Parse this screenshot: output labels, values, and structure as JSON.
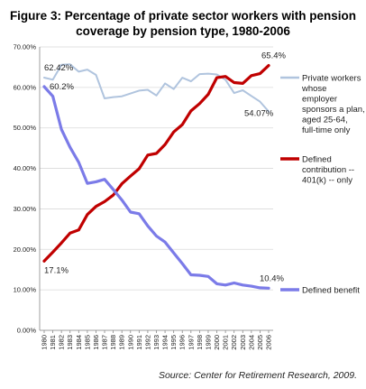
{
  "chart_data": {
    "type": "line",
    "title": "Figure 3:  Percentage of private sector workers with pension coverage by pension type, 1980-2006",
    "title_lines": [
      "Figure 3:  Percentage of private sector workers with pension",
      "coverage by pension type, 1980-2006"
    ],
    "source": "Source: Center for Retirement Research, 2009.",
    "ylim": [
      0,
      70
    ],
    "y_ticks": [
      "0.00%",
      "10.00%",
      "20.00%",
      "30.00%",
      "40.00%",
      "50.00%",
      "60.00%",
      "70.00%"
    ],
    "grid": true,
    "legend_position": "right, beside line ends",
    "categories": [
      "1980",
      "1981",
      "1982",
      "1983",
      "1984",
      "1985",
      "1986",
      "1987",
      "1988",
      "1989",
      "1990",
      "1991",
      "1992",
      "1993",
      "1994",
      "1995",
      "1996",
      "1997",
      "1998",
      "1999",
      "2000",
      "2001",
      "2002",
      "2003",
      "2004",
      "2005",
      "2006"
    ],
    "series": [
      {
        "name": "Private workers whose employer sponsors a plan, aged 25-64, full-time only",
        "legend_lines": [
          "Private workers",
          "whose",
          "employer",
          "sponsors a plan,",
          "aged 25-64,",
          "full-time only"
        ],
        "color": "#b0c4de",
        "values": [
          62.42,
          61.9,
          65.6,
          65.7,
          63.9,
          64.4,
          63.1,
          57.3,
          57.6,
          57.8,
          58.5,
          59.2,
          59.4,
          58.0,
          61.0,
          59.6,
          62.4,
          61.5,
          63.3,
          63.4,
          63.2,
          61.9,
          58.6,
          59.3,
          57.9,
          56.5,
          54.07
        ]
      },
      {
        "name": "Defined contribution -- 401(k) -- only",
        "legend_lines": [
          "Defined",
          "contribution --",
          "401(k) -- only"
        ],
        "color": "#c00000",
        "values": [
          17.1,
          19.3,
          21.6,
          24.0,
          24.8,
          28.6,
          30.6,
          31.8,
          33.4,
          36.2,
          38.1,
          39.9,
          43.3,
          43.7,
          45.9,
          49.0,
          50.8,
          54.2,
          56.0,
          58.3,
          62.4,
          62.7,
          61.2,
          61.0,
          62.9,
          63.4,
          65.4
        ]
      },
      {
        "name": "Defined benefit",
        "legend_lines": [
          "Defined benefit"
        ],
        "color": "#7b7be8",
        "values": [
          60.2,
          57.8,
          49.6,
          45.2,
          41.5,
          36.3,
          36.7,
          37.3,
          34.8,
          32.2,
          29.2,
          28.8,
          25.8,
          23.3,
          21.8,
          19.1,
          16.5,
          13.7,
          13.6,
          13.3,
          11.5,
          11.2,
          11.7,
          11.2,
          10.9,
          10.5,
          10.4
        ]
      }
    ],
    "annotations": [
      {
        "text": "62.42%",
        "series": 0,
        "index": 0
      },
      {
        "text": "54.07%",
        "series": 0,
        "index": 26
      },
      {
        "text": "65.4%",
        "series": 1,
        "index": 26
      },
      {
        "text": "17.1%",
        "series": 1,
        "index": 0
      },
      {
        "text": "60.2%",
        "series": 2,
        "index": 0
      },
      {
        "text": "10.4%",
        "series": 2,
        "index": 26
      }
    ]
  }
}
